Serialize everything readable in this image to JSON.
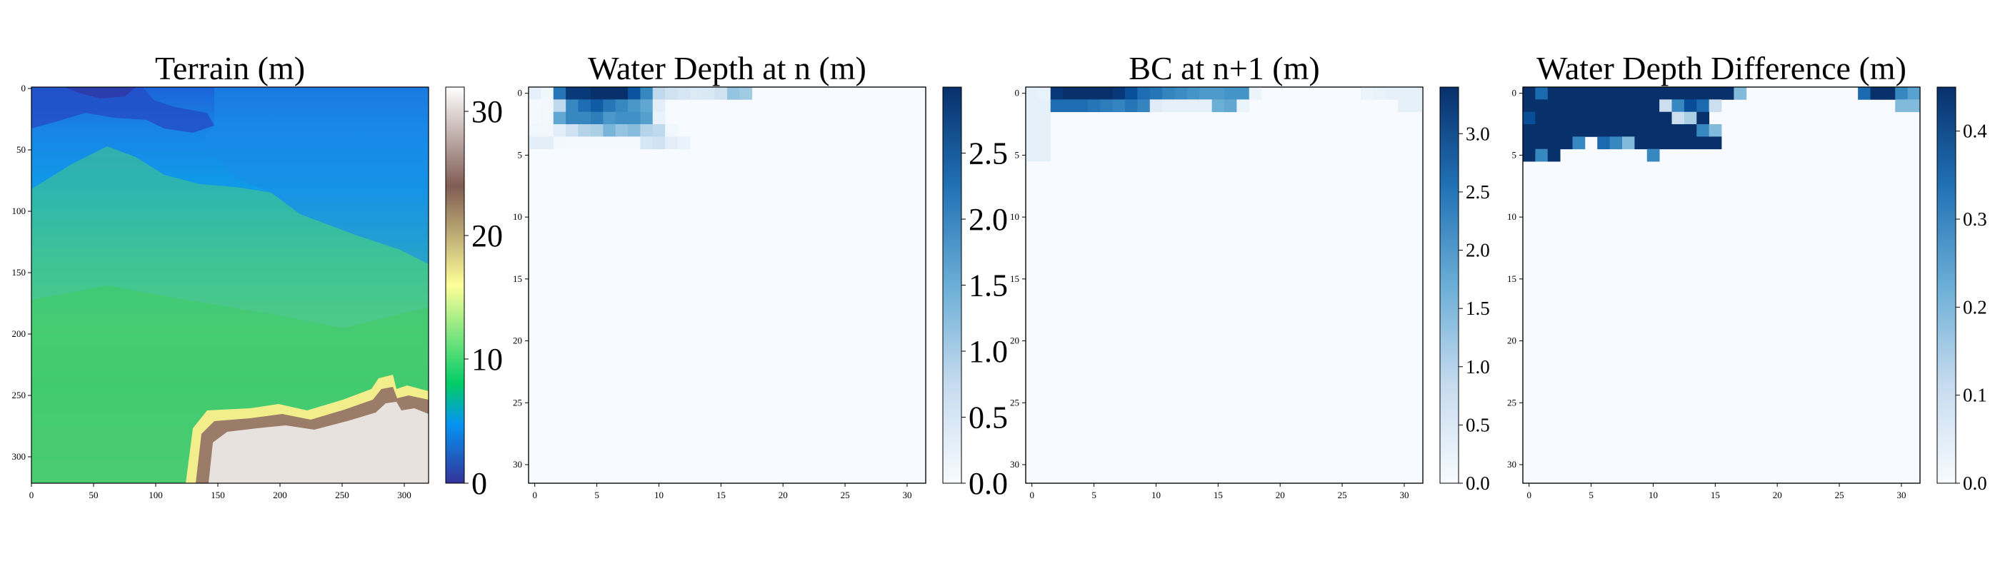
{
  "chart_data": [
    {
      "type": "heatmap",
      "title": "Terrain (m)",
      "colormap": "terrain",
      "xticks": [
        "0",
        "50",
        "100",
        "150",
        "200",
        "250",
        "300"
      ],
      "yticks": [
        "0",
        "50",
        "100",
        "150",
        "200",
        "250",
        "300"
      ],
      "xlim": [
        0,
        320
      ],
      "ylim": [
        0,
        320
      ],
      "colorbar": {
        "vmin": 0,
        "vmax": 32,
        "ticks": [
          "0",
          "10",
          "20",
          "30"
        ]
      },
      "description_regions": {
        "low_dark_blue": "top-left channel, values ~0-3",
        "blue": "top area, values ~3-7",
        "green": "middle and lower-left, values ~8-12",
        "yellow_to_white": "bottom-right ridge, values ~15-32"
      }
    },
    {
      "type": "heatmap",
      "title": "Water Depth at n (m)",
      "colormap": "Blues",
      "xticks": [
        "0",
        "5",
        "10",
        "15",
        "20",
        "25",
        "30"
      ],
      "yticks": [
        "0",
        "5",
        "10",
        "15",
        "20",
        "25",
        "30"
      ],
      "grid_size": [
        32,
        32
      ],
      "colorbar": {
        "vmin": 0,
        "vmax": 3.0,
        "ticks": [
          "0.0",
          "0.5",
          "1.0",
          "1.5",
          "2.0",
          "2.5"
        ]
      },
      "cells": [
        [
          0,
          0,
          0.25
        ],
        [
          0,
          1,
          0.12
        ],
        [
          0,
          2,
          2.2
        ],
        [
          0,
          3,
          2.9
        ],
        [
          0,
          4,
          2.9
        ],
        [
          0,
          5,
          3.0
        ],
        [
          0,
          6,
          3.0
        ],
        [
          0,
          7,
          3.0
        ],
        [
          0,
          8,
          2.6
        ],
        [
          0,
          9,
          2.0
        ],
        [
          0,
          10,
          0.8
        ],
        [
          0,
          11,
          0.6
        ],
        [
          0,
          12,
          0.5
        ],
        [
          0,
          13,
          0.4
        ],
        [
          0,
          14,
          0.45
        ],
        [
          0,
          15,
          0.6
        ],
        [
          0,
          16,
          1.2
        ],
        [
          0,
          17,
          1.1
        ],
        [
          1,
          0,
          0.05
        ],
        [
          1,
          1,
          0.08
        ],
        [
          1,
          2,
          0.8
        ],
        [
          1,
          3,
          2.0
        ],
        [
          1,
          4,
          2.3
        ],
        [
          1,
          5,
          2.5
        ],
        [
          1,
          6,
          2.2
        ],
        [
          1,
          7,
          2.0
        ],
        [
          1,
          8,
          1.8
        ],
        [
          1,
          9,
          1.6
        ],
        [
          1,
          10,
          0.3
        ],
        [
          2,
          0,
          0.05
        ],
        [
          2,
          1,
          0.1
        ],
        [
          2,
          2,
          1.6
        ],
        [
          2,
          3,
          2.0
        ],
        [
          2,
          4,
          2.0
        ],
        [
          2,
          5,
          2.1
        ],
        [
          2,
          6,
          1.8
        ],
        [
          2,
          7,
          1.9
        ],
        [
          2,
          8,
          1.9
        ],
        [
          2,
          9,
          1.7
        ],
        [
          2,
          10,
          0.2
        ],
        [
          3,
          0,
          0.1
        ],
        [
          3,
          1,
          0.1
        ],
        [
          3,
          2,
          0.3
        ],
        [
          3,
          3,
          0.6
        ],
        [
          3,
          4,
          0.9
        ],
        [
          3,
          5,
          1.0
        ],
        [
          3,
          6,
          1.4
        ],
        [
          3,
          7,
          1.2
        ],
        [
          3,
          8,
          1.3
        ],
        [
          3,
          9,
          0.9
        ],
        [
          3,
          10,
          0.8
        ],
        [
          3,
          11,
          0.1
        ],
        [
          4,
          0,
          0.3
        ],
        [
          4,
          1,
          0.3
        ],
        [
          4,
          2,
          0.1
        ],
        [
          4,
          3,
          0.05
        ],
        [
          4,
          4,
          0.05
        ],
        [
          4,
          5,
          0.05
        ],
        [
          4,
          6,
          0.05
        ],
        [
          4,
          7,
          0.05
        ],
        [
          4,
          8,
          0.05
        ],
        [
          4,
          9,
          0.5
        ],
        [
          4,
          10,
          0.6
        ],
        [
          4,
          11,
          0.3
        ],
        [
          4,
          12,
          0.2
        ]
      ]
    },
    {
      "type": "heatmap",
      "title": "BC at n+1 (m)",
      "colormap": "Blues",
      "xticks": [
        "0",
        "5",
        "10",
        "15",
        "20",
        "25",
        "30"
      ],
      "yticks": [
        "0",
        "5",
        "10",
        "15",
        "20",
        "25",
        "30"
      ],
      "grid_size": [
        32,
        32
      ],
      "colorbar": {
        "vmin": 0,
        "vmax": 3.4,
        "ticks": [
          "0.0",
          "0.5",
          "1.0",
          "1.5",
          "2.0",
          "2.5",
          "3.0"
        ]
      },
      "cells": [
        [
          0,
          0,
          0.3
        ],
        [
          0,
          1,
          0.25
        ],
        [
          0,
          2,
          3.3
        ],
        [
          0,
          3,
          3.4
        ],
        [
          0,
          4,
          3.4
        ],
        [
          0,
          5,
          3.4
        ],
        [
          0,
          6,
          3.4
        ],
        [
          0,
          7,
          3.3
        ],
        [
          0,
          8,
          3.0
        ],
        [
          0,
          9,
          2.6
        ],
        [
          0,
          10,
          2.5
        ],
        [
          0,
          11,
          2.3
        ],
        [
          0,
          12,
          2.2
        ],
        [
          0,
          13,
          2.1
        ],
        [
          0,
          14,
          2.0
        ],
        [
          0,
          15,
          2.0
        ],
        [
          0,
          16,
          2.1
        ],
        [
          0,
          17,
          2.1
        ],
        [
          0,
          18,
          0.2
        ],
        [
          0,
          27,
          0.2
        ],
        [
          0,
          28,
          0.25
        ],
        [
          0,
          29,
          0.3
        ],
        [
          0,
          30,
          0.3
        ],
        [
          0,
          31,
          0.3
        ],
        [
          1,
          0,
          0.3
        ],
        [
          1,
          1,
          0.3
        ],
        [
          1,
          2,
          2.6
        ],
        [
          1,
          3,
          2.6
        ],
        [
          1,
          4,
          2.6
        ],
        [
          1,
          5,
          2.5
        ],
        [
          1,
          6,
          2.4
        ],
        [
          1,
          7,
          2.3
        ],
        [
          1,
          8,
          2.5
        ],
        [
          1,
          9,
          2.3
        ],
        [
          1,
          10,
          0.4
        ],
        [
          1,
          11,
          0.3
        ],
        [
          1,
          12,
          0.3
        ],
        [
          1,
          13,
          0.3
        ],
        [
          1,
          14,
          0.3
        ],
        [
          1,
          15,
          1.7
        ],
        [
          1,
          16,
          1.8
        ],
        [
          1,
          17,
          0.2
        ],
        [
          1,
          30,
          0.3
        ],
        [
          1,
          31,
          0.3
        ],
        [
          2,
          0,
          0.3
        ],
        [
          2,
          1,
          0.3
        ],
        [
          3,
          0,
          0.3
        ],
        [
          3,
          1,
          0.3
        ],
        [
          4,
          0,
          0.3
        ],
        [
          4,
          1,
          0.3
        ],
        [
          5,
          0,
          0.3
        ],
        [
          5,
          1,
          0.3
        ]
      ]
    },
    {
      "type": "heatmap",
      "title": "Water Depth Difference (m)",
      "colormap": "Blues",
      "xticks": [
        "0",
        "5",
        "10",
        "15",
        "20",
        "25",
        "30"
      ],
      "yticks": [
        "0",
        "5",
        "10",
        "15",
        "20",
        "25",
        "30"
      ],
      "grid_size": [
        32,
        32
      ],
      "colorbar": {
        "vmin": 0,
        "vmax": 0.45,
        "ticks": [
          "0.0",
          "0.1",
          "0.2",
          "0.3",
          "0.4"
        ]
      },
      "cells": [
        [
          0,
          0,
          0.45
        ],
        [
          0,
          1,
          0.35
        ],
        [
          0,
          2,
          0.45
        ],
        [
          0,
          3,
          0.45
        ],
        [
          0,
          4,
          0.45
        ],
        [
          0,
          5,
          0.45
        ],
        [
          0,
          6,
          0.45
        ],
        [
          0,
          7,
          0.45
        ],
        [
          0,
          8,
          0.45
        ],
        [
          0,
          9,
          0.45
        ],
        [
          0,
          10,
          0.45
        ],
        [
          0,
          11,
          0.45
        ],
        [
          0,
          12,
          0.45
        ],
        [
          0,
          13,
          0.45
        ],
        [
          0,
          14,
          0.45
        ],
        [
          0,
          15,
          0.45
        ],
        [
          0,
          16,
          0.45
        ],
        [
          0,
          17,
          0.2
        ],
        [
          0,
          27,
          0.35
        ],
        [
          0,
          28,
          0.45
        ],
        [
          0,
          29,
          0.45
        ],
        [
          0,
          30,
          0.3
        ],
        [
          0,
          31,
          0.25
        ],
        [
          1,
          0,
          0.45
        ],
        [
          1,
          1,
          0.45
        ],
        [
          1,
          2,
          0.45
        ],
        [
          1,
          3,
          0.45
        ],
        [
          1,
          4,
          0.45
        ],
        [
          1,
          5,
          0.45
        ],
        [
          1,
          6,
          0.45
        ],
        [
          1,
          7,
          0.45
        ],
        [
          1,
          8,
          0.45
        ],
        [
          1,
          9,
          0.45
        ],
        [
          1,
          10,
          0.45
        ],
        [
          1,
          11,
          0.1
        ],
        [
          1,
          12,
          0.3
        ],
        [
          1,
          13,
          0.4
        ],
        [
          1,
          14,
          0.35
        ],
        [
          1,
          15,
          0.1
        ],
        [
          1,
          30,
          0.2
        ],
        [
          1,
          31,
          0.2
        ],
        [
          2,
          0,
          0.4
        ],
        [
          2,
          1,
          0.45
        ],
        [
          2,
          2,
          0.45
        ],
        [
          2,
          3,
          0.45
        ],
        [
          2,
          4,
          0.45
        ],
        [
          2,
          5,
          0.45
        ],
        [
          2,
          6,
          0.45
        ],
        [
          2,
          7,
          0.45
        ],
        [
          2,
          8,
          0.45
        ],
        [
          2,
          9,
          0.45
        ],
        [
          2,
          10,
          0.45
        ],
        [
          2,
          11,
          0.45
        ],
        [
          2,
          12,
          0.1
        ],
        [
          2,
          13,
          0.15
        ],
        [
          2,
          14,
          0.45
        ],
        [
          3,
          0,
          0.45
        ],
        [
          3,
          1,
          0.45
        ],
        [
          3,
          2,
          0.45
        ],
        [
          3,
          3,
          0.45
        ],
        [
          3,
          4,
          0.45
        ],
        [
          3,
          5,
          0.45
        ],
        [
          3,
          6,
          0.45
        ],
        [
          3,
          7,
          0.45
        ],
        [
          3,
          8,
          0.45
        ],
        [
          3,
          9,
          0.45
        ],
        [
          3,
          10,
          0.45
        ],
        [
          3,
          11,
          0.45
        ],
        [
          3,
          12,
          0.45
        ],
        [
          3,
          13,
          0.45
        ],
        [
          3,
          14,
          0.3
        ],
        [
          3,
          15,
          0.2
        ],
        [
          4,
          0,
          0.45
        ],
        [
          4,
          1,
          0.45
        ],
        [
          4,
          2,
          0.45
        ],
        [
          4,
          3,
          0.45
        ],
        [
          4,
          4,
          0.3
        ],
        [
          4,
          6,
          0.35
        ],
        [
          4,
          7,
          0.3
        ],
        [
          4,
          8,
          0.2
        ],
        [
          4,
          9,
          0.45
        ],
        [
          4,
          10,
          0.45
        ],
        [
          4,
          11,
          0.45
        ],
        [
          4,
          12,
          0.45
        ],
        [
          4,
          13,
          0.45
        ],
        [
          4,
          14,
          0.45
        ],
        [
          4,
          15,
          0.45
        ],
        [
          5,
          0,
          0.45
        ],
        [
          5,
          1,
          0.3
        ],
        [
          5,
          2,
          0.45
        ],
        [
          5,
          10,
          0.3
        ]
      ]
    }
  ]
}
